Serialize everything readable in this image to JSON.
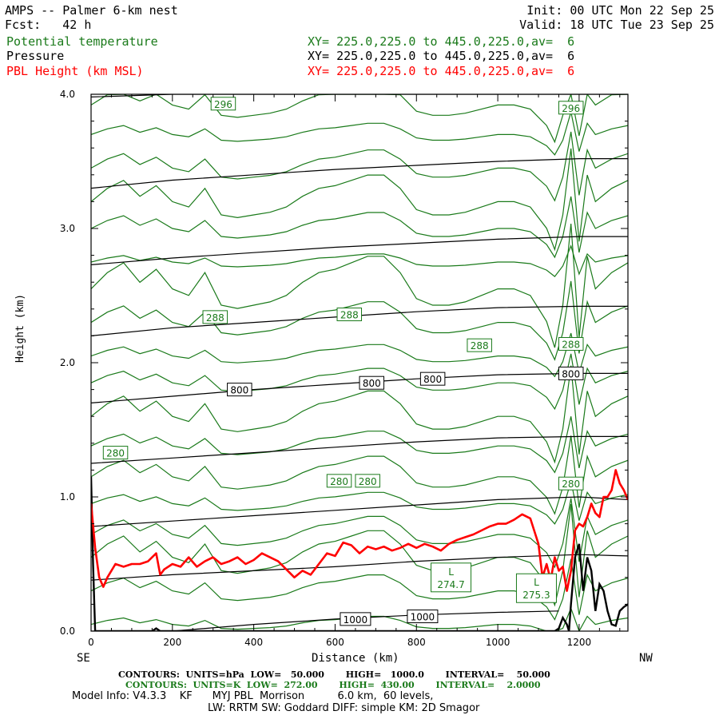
{
  "header": {
    "title": "AMPS -- Palmer 6-km nest",
    "fcst": "Fcst:   42 h",
    "init": "Init: 00 UTC Mon 22 Sep 25",
    "valid": "Valid: 18 UTC Tue 23 Sep 25"
  },
  "fields": [
    {
      "name": "Potential temperature",
      "xy": "XY= 225.0,225.0 to 445.0,225.0,av=  6",
      "color": "#1a7a1a"
    },
    {
      "name": "Pressure",
      "xy": "XY= 225.0,225.0 to 445.0,225.0,av=  6",
      "color": "#000000"
    },
    {
      "name": "PBL Height (km MSL)",
      "xy": "XY= 225.0,225.0 to 445.0,225.0,av=  6",
      "color": "#ff0000"
    }
  ],
  "chart_data": {
    "type": "line",
    "xlabel": "Distance (km)",
    "ylabel": "Height (km)",
    "xlim": [
      0,
      1320
    ],
    "ylim": [
      0,
      4.0
    ],
    "x_ticks": [
      "0",
      "200",
      "400",
      "600",
      "800",
      "1000",
      "1200"
    ],
    "x_tick_values": [
      0,
      200,
      400,
      600,
      800,
      1000,
      1200
    ],
    "y_ticks": [
      "0.0",
      "1.0",
      "2.0",
      "3.0",
      "4.0"
    ],
    "y_tick_values": [
      0,
      1,
      2,
      3,
      4
    ],
    "left_end_label": "SE",
    "right_end_label": "NW",
    "pbl_height": {
      "color": "#ff0000",
      "x": [
        0,
        10,
        20,
        30,
        40,
        60,
        80,
        100,
        120,
        140,
        160,
        170,
        180,
        200,
        220,
        240,
        260,
        280,
        300,
        320,
        340,
        360,
        380,
        400,
        420,
        440,
        460,
        480,
        500,
        520,
        540,
        560,
        580,
        600,
        620,
        640,
        660,
        680,
        700,
        720,
        740,
        760,
        780,
        800,
        820,
        840,
        860,
        880,
        900,
        920,
        940,
        960,
        980,
        1000,
        1020,
        1040,
        1060,
        1080,
        1100,
        1110,
        1120,
        1130,
        1140,
        1150,
        1160,
        1170,
        1180,
        1190,
        1200,
        1210,
        1220,
        1230,
        1240,
        1250,
        1260,
        1270,
        1280,
        1290,
        1300,
        1310,
        1320
      ],
      "y": [
        0.95,
        0.62,
        0.4,
        0.33,
        0.4,
        0.5,
        0.48,
        0.5,
        0.5,
        0.52,
        0.58,
        0.42,
        0.46,
        0.5,
        0.48,
        0.55,
        0.48,
        0.52,
        0.55,
        0.5,
        0.52,
        0.55,
        0.5,
        0.53,
        0.58,
        0.55,
        0.52,
        0.46,
        0.4,
        0.45,
        0.42,
        0.5,
        0.58,
        0.56,
        0.66,
        0.64,
        0.58,
        0.63,
        0.61,
        0.63,
        0.6,
        0.62,
        0.65,
        0.62,
        0.65,
        0.63,
        0.6,
        0.65,
        0.68,
        0.7,
        0.72,
        0.75,
        0.78,
        0.8,
        0.8,
        0.83,
        0.87,
        0.84,
        0.65,
        0.4,
        0.5,
        0.38,
        0.55,
        0.45,
        0.48,
        0.3,
        0.45,
        0.75,
        0.8,
        0.78,
        0.85,
        0.95,
        0.88,
        0.85,
        1.0,
        1.0,
        1.05,
        1.2,
        1.1,
        1.05,
        0.98
      ]
    },
    "terrain": {
      "color": "#000000",
      "x": [
        0,
        5,
        10,
        15,
        150,
        160,
        170,
        180,
        1140,
        1150,
        1160,
        1170,
        1175,
        1180,
        1190,
        1200,
        1210,
        1220,
        1230,
        1240,
        1250,
        1260,
        1270,
        1280,
        1290,
        1300,
        1310,
        1320
      ],
      "y": [
        1.15,
        0.5,
        0.0,
        0.0,
        0.0,
        0.02,
        0.0,
        0.0,
        0.0,
        0.02,
        0.1,
        0.05,
        0.0,
        0.2,
        0.55,
        0.65,
        0.3,
        0.55,
        0.45,
        0.15,
        0.35,
        0.3,
        0.15,
        0.05,
        0.04,
        0.15,
        0.18,
        0.2
      ]
    },
    "isobars": [
      {
        "value": "1000",
        "x": [
          0,
          200,
          400,
          600,
          800,
          1000,
          1150
        ],
        "y": [
          0.0,
          0.0,
          0.05,
          0.09,
          0.12,
          0.14,
          0.15
        ]
      },
      {
        "value": "",
        "x": [
          0,
          200,
          400,
          600,
          800,
          1000,
          1200,
          1320
        ],
        "y": [
          0.38,
          0.42,
          0.45,
          0.48,
          0.52,
          0.55,
          0.57,
          0.56
        ]
      },
      {
        "value": "",
        "x": [
          0,
          200,
          400,
          600,
          800,
          1000,
          1200,
          1320
        ],
        "y": [
          0.78,
          0.82,
          0.86,
          0.9,
          0.94,
          0.98,
          1.0,
          0.98
        ]
      },
      {
        "value": "",
        "x": [
          0,
          200,
          400,
          600,
          800,
          1000,
          1200,
          1320
        ],
        "y": [
          1.25,
          1.29,
          1.33,
          1.37,
          1.41,
          1.44,
          1.45,
          1.45
        ]
      },
      {
        "value": "800",
        "x": [
          0,
          200,
          400,
          600,
          800,
          1000,
          1200,
          1320
        ],
        "y": [
          1.7,
          1.75,
          1.8,
          1.84,
          1.88,
          1.91,
          1.92,
          1.92
        ]
      },
      {
        "value": "",
        "x": [
          0,
          200,
          400,
          600,
          800,
          1000,
          1200,
          1320
        ],
        "y": [
          2.2,
          2.26,
          2.3,
          2.34,
          2.38,
          2.41,
          2.42,
          2.42
        ]
      },
      {
        "value": "",
        "x": [
          0,
          200,
          400,
          600,
          800,
          1000,
          1200,
          1320
        ],
        "y": [
          2.73,
          2.78,
          2.82,
          2.86,
          2.89,
          2.92,
          2.94,
          2.94
        ]
      },
      {
        "value": "",
        "x": [
          0,
          200,
          400,
          600,
          800,
          1000,
          1200,
          1320
        ],
        "y": [
          3.3,
          3.36,
          3.4,
          3.44,
          3.47,
          3.5,
          3.52,
          3.52
        ]
      },
      {
        "value": "",
        "x": [
          0,
          200,
          400,
          600,
          800,
          1000,
          1200,
          1320
        ],
        "y": [
          3.98,
          4.0,
          4.0,
          4.0,
          4.0,
          4.0,
          4.0,
          4.0
        ]
      }
    ],
    "isentropes": {
      "color": "#1a7a1a",
      "x": [
        0,
        40,
        80,
        120,
        160,
        200,
        240,
        280,
        320,
        360,
        400,
        440,
        480,
        520,
        560,
        600,
        640,
        680,
        720,
        760,
        800,
        840,
        880,
        920,
        960,
        1000,
        1040,
        1080,
        1120,
        1140,
        1160,
        1180,
        1200,
        1220,
        1240,
        1280,
        1320
      ],
      "bumps": [
        0,
        0.05,
        0.08,
        0.02,
        0.06,
        0.0,
        -0.02,
        0.05,
        -0.05,
        -0.06,
        -0.05,
        -0.04,
        -0.02,
        0.02,
        0.05,
        0.06,
        0.08,
        0.1,
        0.1,
        0.05,
        -0.03,
        -0.05,
        -0.05,
        -0.04,
        -0.02,
        0.0,
        0.0,
        -0.02,
        -0.1,
        -0.18,
        -0.05,
        0.2,
        -0.15,
        0.1,
        0.0,
        0.05,
        0.08
      ],
      "base_levels": [
        0.05,
        0.3,
        0.55,
        0.72,
        0.95,
        1.15,
        1.38,
        1.6,
        1.85,
        2.05,
        2.3,
        2.55,
        2.75,
        3.0,
        3.2,
        3.45,
        3.7,
        3.92
      ]
    },
    "labels": [
      {
        "text": "296",
        "x": 325,
        "y": 3.93,
        "color": "#1a7a1a"
      },
      {
        "text": "296",
        "x": 1180,
        "y": 3.9,
        "color": "#1a7a1a"
      },
      {
        "text": "288",
        "x": 305,
        "y": 2.34,
        "color": "#1a7a1a"
      },
      {
        "text": "288",
        "x": 635,
        "y": 2.36,
        "color": "#1a7a1a"
      },
      {
        "text": "288",
        "x": 955,
        "y": 2.13,
        "color": "#1a7a1a"
      },
      {
        "text": "288",
        "x": 1180,
        "y": 2.14,
        "color": "#1a7a1a"
      },
      {
        "text": "280",
        "x": 60,
        "y": 1.33,
        "color": "#1a7a1a"
      },
      {
        "text": "280",
        "x": 610,
        "y": 1.12,
        "color": "#1a7a1a"
      },
      {
        "text": "280",
        "x": 680,
        "y": 1.12,
        "color": "#1a7a1a"
      },
      {
        "text": "280",
        "x": 1180,
        "y": 1.1,
        "color": "#1a7a1a"
      },
      {
        "text": "800",
        "x": 365,
        "y": 1.8,
        "color": "#000000"
      },
      {
        "text": "800",
        "x": 690,
        "y": 1.85,
        "color": "#000000"
      },
      {
        "text": "800",
        "x": 840,
        "y": 1.88,
        "color": "#000000"
      },
      {
        "text": "800",
        "x": 1180,
        "y": 1.92,
        "color": "#000000"
      },
      {
        "text": "1000",
        "x": 650,
        "y": 0.09,
        "color": "#000000"
      },
      {
        "text": "1000",
        "x": 815,
        "y": 0.11,
        "color": "#000000"
      }
    ],
    "minima": [
      {
        "letter": "L",
        "value": "274.7",
        "x": 885,
        "y": 0.4
      },
      {
        "letter": "L",
        "value": "275.3",
        "x": 1095,
        "y": 0.32
      }
    ]
  },
  "footer": {
    "contours_p": "CONTOURS:  UNITS=hPa  LOW=   50.000       HIGH=   1000.0       INTERVAL=    50.000",
    "contours_k": "CONTOURS:  UNITS=K  LOW=  272.00       HIGH=  430.00       INTERVAL=    2.0000",
    "model_info": "Model Info: V4.3.3    KF      MYJ PBL  Morrison          6.0 km,  60 levels,",
    "physics": "LW: RRTM SW: Goddard DIFF: simple KM: 2D Smagor"
  }
}
